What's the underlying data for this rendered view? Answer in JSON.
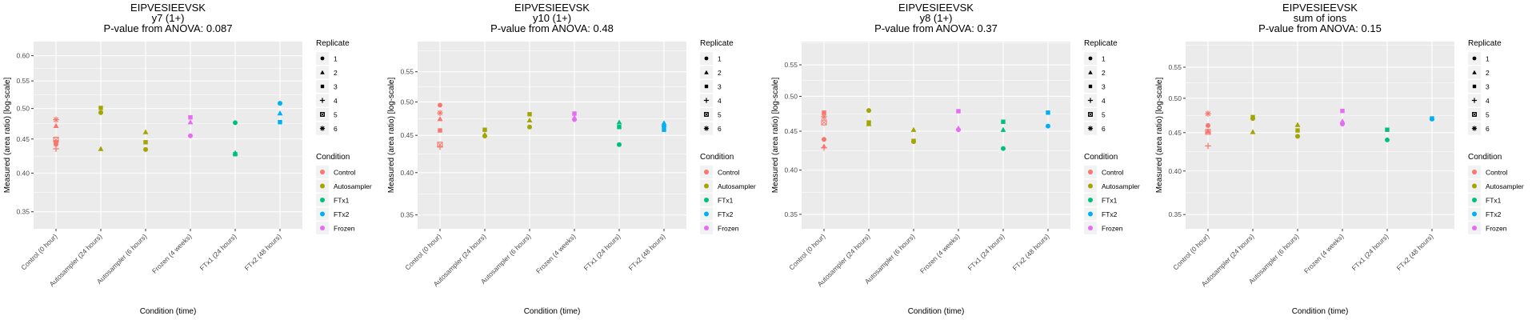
{
  "chart_data": [
    {
      "type": "scatter",
      "title": "EIPVESIEEVSK",
      "subtitle": "y7 (1+)",
      "pvalue_text": "P-value from ANOVA: 0.087",
      "xlabel": "Condition (time)",
      "ylabel": "Measured (area ratio) [log-scale]",
      "yscale": "log",
      "ylim": [
        0.33,
        0.63
      ],
      "yticks": [
        0.35,
        0.4,
        0.45,
        0.5,
        0.55,
        0.6
      ],
      "ytick_labels": [
        "0.35",
        "0.40",
        "0.45",
        "0.50",
        "0.55",
        "0.60"
      ],
      "categories": [
        "Control (0 hour)",
        "Autosampler (24 hours)",
        "Autosampler (6 hours)",
        "Frozen (4 weeks)",
        "FTx1 (24 hours)",
        "FTx2 (48 hours)"
      ],
      "points": [
        {
          "cat": 0,
          "condition": "Control",
          "replicate": 6,
          "y": 0.481
        },
        {
          "cat": 0,
          "condition": "Control",
          "replicate": 2,
          "y": 0.471
        },
        {
          "cat": 0,
          "condition": "Control",
          "replicate": 5,
          "y": 0.449
        },
        {
          "cat": 0,
          "condition": "Control",
          "replicate": 3,
          "y": 0.445
        },
        {
          "cat": 0,
          "condition": "Control",
          "replicate": 1,
          "y": 0.442
        },
        {
          "cat": 0,
          "condition": "Control",
          "replicate": 4,
          "y": 0.435
        },
        {
          "cat": 1,
          "condition": "Autosampler",
          "replicate": 3,
          "y": 0.501
        },
        {
          "cat": 1,
          "condition": "Autosampler",
          "replicate": 1,
          "y": 0.493
        },
        {
          "cat": 1,
          "condition": "Autosampler",
          "replicate": 2,
          "y": 0.435
        },
        {
          "cat": 2,
          "condition": "Autosampler",
          "replicate": 2,
          "y": 0.461
        },
        {
          "cat": 2,
          "condition": "Autosampler",
          "replicate": 3,
          "y": 0.445
        },
        {
          "cat": 2,
          "condition": "Autosampler",
          "replicate": 1,
          "y": 0.434
        },
        {
          "cat": 3,
          "condition": "Frozen",
          "replicate": 3,
          "y": 0.485
        },
        {
          "cat": 3,
          "condition": "Frozen",
          "replicate": 2,
          "y": 0.477
        },
        {
          "cat": 3,
          "condition": "Frozen",
          "replicate": 1,
          "y": 0.455
        },
        {
          "cat": 4,
          "condition": "FTx1",
          "replicate": 1,
          "y": 0.476
        },
        {
          "cat": 4,
          "condition": "FTx1",
          "replicate": 2,
          "y": 0.429
        },
        {
          "cat": 4,
          "condition": "FTx1",
          "replicate": 3,
          "y": 0.427
        },
        {
          "cat": 5,
          "condition": "FTx2",
          "replicate": 1,
          "y": 0.509
        },
        {
          "cat": 5,
          "condition": "FTx2",
          "replicate": 2,
          "y": 0.492
        },
        {
          "cat": 5,
          "condition": "FTx2",
          "replicate": 3,
          "y": 0.477
        }
      ]
    },
    {
      "type": "scatter",
      "title": "EIPVESIEEVSK",
      "subtitle": "y10 (1+)",
      "pvalue_text": "P-value from ANOVA: 0.48",
      "xlabel": "Condition (time)",
      "ylabel": "Measured (area ratio) [log-scale]",
      "yscale": "log",
      "ylim": [
        0.335,
        0.605
      ],
      "yticks": [
        0.35,
        0.4,
        0.45,
        0.5,
        0.55
      ],
      "ytick_labels": [
        "0.35",
        "0.40",
        "0.45",
        "0.50",
        "0.55"
      ],
      "categories": [
        "Control (0 hour)",
        "Autosampler (24 hours)",
        "Autosampler (6 hours)",
        "Frozen (4 weeks)",
        "FTx1 (24 hours)",
        "FTx2 (48 hours)"
      ],
      "points": [
        {
          "cat": 0,
          "condition": "Control",
          "replicate": 1,
          "y": 0.495
        },
        {
          "cat": 0,
          "condition": "Control",
          "replicate": 6,
          "y": 0.483
        },
        {
          "cat": 0,
          "condition": "Control",
          "replicate": 2,
          "y": 0.474
        },
        {
          "cat": 0,
          "condition": "Control",
          "replicate": 3,
          "y": 0.457
        },
        {
          "cat": 0,
          "condition": "Control",
          "replicate": 5,
          "y": 0.437
        },
        {
          "cat": 0,
          "condition": "Control",
          "replicate": 4,
          "y": 0.434
        },
        {
          "cat": 1,
          "condition": "Autosampler",
          "replicate": 3,
          "y": 0.458
        },
        {
          "cat": 1,
          "condition": "Autosampler",
          "replicate": 2,
          "y": 0.451
        },
        {
          "cat": 1,
          "condition": "Autosampler",
          "replicate": 1,
          "y": 0.449
        },
        {
          "cat": 2,
          "condition": "Autosampler",
          "replicate": 3,
          "y": 0.481
        },
        {
          "cat": 2,
          "condition": "Autosampler",
          "replicate": 2,
          "y": 0.472
        },
        {
          "cat": 2,
          "condition": "Autosampler",
          "replicate": 1,
          "y": 0.462
        },
        {
          "cat": 3,
          "condition": "Frozen",
          "replicate": 3,
          "y": 0.482
        },
        {
          "cat": 3,
          "condition": "Frozen",
          "replicate": 2,
          "y": 0.476
        },
        {
          "cat": 3,
          "condition": "Frozen",
          "replicate": 1,
          "y": 0.473
        },
        {
          "cat": 4,
          "condition": "FTx1",
          "replicate": 2,
          "y": 0.469
        },
        {
          "cat": 4,
          "condition": "FTx1",
          "replicate": 3,
          "y": 0.462
        },
        {
          "cat": 4,
          "condition": "FTx1",
          "replicate": 1,
          "y": 0.437
        },
        {
          "cat": 5,
          "condition": "FTx2",
          "replicate": 2,
          "y": 0.468
        },
        {
          "cat": 5,
          "condition": "FTx2",
          "replicate": 1,
          "y": 0.463
        },
        {
          "cat": 5,
          "condition": "FTx2",
          "replicate": 3,
          "y": 0.458
        }
      ]
    },
    {
      "type": "scatter",
      "title": "EIPVESIEEVSK",
      "subtitle": "y8 (1+)",
      "pvalue_text": "P-value from ANOVA: 0.37",
      "xlabel": "Condition (time)",
      "ylabel": "Measured (area ratio) [log-scale]",
      "yscale": "log",
      "ylim": [
        0.335,
        0.59
      ],
      "yticks": [
        0.35,
        0.4,
        0.45,
        0.5,
        0.55
      ],
      "ytick_labels": [
        "0.35",
        "0.40",
        "0.45",
        "0.50",
        "0.55"
      ],
      "categories": [
        "Control (0 hour)",
        "Autosampler (24 hours)",
        "Autosampler (6 hours)",
        "Frozen (4 weeks)",
        "FTx1 (24 hours)",
        "FTx2 (48 hours)"
      ],
      "points": [
        {
          "cat": 0,
          "condition": "Control",
          "replicate": 3,
          "y": 0.476
        },
        {
          "cat": 0,
          "condition": "Control",
          "replicate": 6,
          "y": 0.47
        },
        {
          "cat": 0,
          "condition": "Control",
          "replicate": 5,
          "y": 0.462
        },
        {
          "cat": 0,
          "condition": "Control",
          "replicate": 1,
          "y": 0.439
        },
        {
          "cat": 0,
          "condition": "Control",
          "replicate": 2,
          "y": 0.43
        },
        {
          "cat": 0,
          "condition": "Control",
          "replicate": 4,
          "y": 0.428
        },
        {
          "cat": 1,
          "condition": "Autosampler",
          "replicate": 1,
          "y": 0.479
        },
        {
          "cat": 1,
          "condition": "Autosampler",
          "replicate": 3,
          "y": 0.462
        },
        {
          "cat": 1,
          "condition": "Autosampler",
          "replicate": 2,
          "y": 0.46
        },
        {
          "cat": 2,
          "condition": "Autosampler",
          "replicate": 2,
          "y": 0.452
        },
        {
          "cat": 2,
          "condition": "Autosampler",
          "replicate": 3,
          "y": 0.437
        },
        {
          "cat": 2,
          "condition": "Autosampler",
          "replicate": 1,
          "y": 0.436
        },
        {
          "cat": 3,
          "condition": "Frozen",
          "replicate": 3,
          "y": 0.478
        },
        {
          "cat": 3,
          "condition": "Frozen",
          "replicate": 2,
          "y": 0.454
        },
        {
          "cat": 3,
          "condition": "Frozen",
          "replicate": 1,
          "y": 0.452
        },
        {
          "cat": 4,
          "condition": "FTx1",
          "replicate": 3,
          "y": 0.463
        },
        {
          "cat": 4,
          "condition": "FTx1",
          "replicate": 2,
          "y": 0.452
        },
        {
          "cat": 4,
          "condition": "FTx1",
          "replicate": 1,
          "y": 0.427
        },
        {
          "cat": 5,
          "condition": "FTx2",
          "replicate": 3,
          "y": 0.476
        },
        {
          "cat": 5,
          "condition": "FTx2",
          "replicate": 1,
          "y": 0.457
        }
      ]
    },
    {
      "type": "scatter",
      "title": "EIPVESIEEVSK",
      "subtitle": "sum of ions",
      "pvalue_text": "P-value from ANOVA: 0.15",
      "xlabel": "Condition (time)",
      "ylabel": "Measured (area ratio) [log-scale]",
      "yscale": "log",
      "ylim": [
        0.335,
        0.595
      ],
      "yticks": [
        0.35,
        0.4,
        0.45,
        0.5,
        0.55
      ],
      "ytick_labels": [
        "0.35",
        "0.40",
        "0.45",
        "0.50",
        "0.55"
      ],
      "categories": [
        "Control (0 hour)",
        "Autosampler (24 hours)",
        "Autosampler (6 hours)",
        "Frozen (4 weeks)",
        "FTx1 (24 hours)",
        "FTx2 (48 hours)"
      ],
      "points": [
        {
          "cat": 0,
          "condition": "Control",
          "replicate": 6,
          "y": 0.477
        },
        {
          "cat": 0,
          "condition": "Control",
          "replicate": 1,
          "y": 0.46
        },
        {
          "cat": 0,
          "condition": "Control",
          "replicate": 2,
          "y": 0.452
        },
        {
          "cat": 0,
          "condition": "Control",
          "replicate": 5,
          "y": 0.451
        },
        {
          "cat": 0,
          "condition": "Control",
          "replicate": 4,
          "y": 0.432
        },
        {
          "cat": 1,
          "condition": "Autosampler",
          "replicate": 3,
          "y": 0.472
        },
        {
          "cat": 1,
          "condition": "Autosampler",
          "replicate": 1,
          "y": 0.47
        },
        {
          "cat": 1,
          "condition": "Autosampler",
          "replicate": 2,
          "y": 0.451
        },
        {
          "cat": 2,
          "condition": "Autosampler",
          "replicate": 2,
          "y": 0.461
        },
        {
          "cat": 2,
          "condition": "Autosampler",
          "replicate": 3,
          "y": 0.453
        },
        {
          "cat": 2,
          "condition": "Autosampler",
          "replicate": 1,
          "y": 0.445
        },
        {
          "cat": 3,
          "condition": "Frozen",
          "replicate": 3,
          "y": 0.481
        },
        {
          "cat": 3,
          "condition": "Frozen",
          "replicate": 2,
          "y": 0.466
        },
        {
          "cat": 3,
          "condition": "Frozen",
          "replicate": 1,
          "y": 0.462
        },
        {
          "cat": 4,
          "condition": "FTx1",
          "replicate": 3,
          "y": 0.454
        },
        {
          "cat": 4,
          "condition": "FTx1",
          "replicate": 1,
          "y": 0.44
        },
        {
          "cat": 5,
          "condition": "FTx2",
          "replicate": 3,
          "y": 0.47
        },
        {
          "cat": 5,
          "condition": "FTx2",
          "replicate": 1,
          "y": 0.469
        }
      ]
    }
  ],
  "legend": {
    "replicate_title": "Replicate",
    "replicates": [
      {
        "label": "1",
        "shape": "circle"
      },
      {
        "label": "2",
        "shape": "triangle"
      },
      {
        "label": "3",
        "shape": "square"
      },
      {
        "label": "4",
        "shape": "plus"
      },
      {
        "label": "5",
        "shape": "boxed-x"
      },
      {
        "label": "6",
        "shape": "asterisk"
      }
    ],
    "condition_title": "Condition",
    "conditions": [
      {
        "label": "Control",
        "color": "#F8766D"
      },
      {
        "label": "Autosampler",
        "color": "#A3A500"
      },
      {
        "label": "FTx1",
        "color": "#00BF7D"
      },
      {
        "label": "FTx2",
        "color": "#00B0F6"
      },
      {
        "label": "Frozen",
        "color": "#E76BF3"
      }
    ]
  },
  "colors": {
    "panel_bg": "#EBEBEB",
    "grid": "#FFFFFF",
    "legend_key_bg": "#F2F2F2"
  }
}
